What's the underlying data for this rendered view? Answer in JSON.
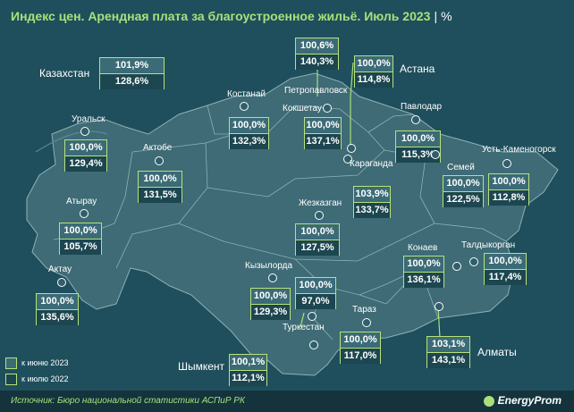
{
  "title": "Индекс цен. Арендная плата за благоустроенное жильё. Июль 2023",
  "unit": "%",
  "separator": "|",
  "national": {
    "name": "Казахстан",
    "vs_june": "101,9%",
    "vs_july": "128,6%"
  },
  "regions": [
    {
      "id": "petropavlovsk",
      "name": "Петропавловск",
      "vs_june": "100,6%",
      "vs_july": "140,3%"
    },
    {
      "id": "astana",
      "name": "Астана",
      "vs_june": "100,0%",
      "vs_july": "114,8%"
    },
    {
      "id": "kostanay",
      "name": "Костанай",
      "vs_june": "100,0%",
      "vs_july": "132,3%"
    },
    {
      "id": "kokshetau",
      "name": "Кокшетау",
      "vs_june": "100,0%",
      "vs_july": "137,1%"
    },
    {
      "id": "pavlodar",
      "name": "Павлодар",
      "vs_june": "100,0%",
      "vs_july": "115,3%"
    },
    {
      "id": "uralsk",
      "name": "Уральск",
      "vs_june": "100,0%",
      "vs_july": "129,4%"
    },
    {
      "id": "aktobe",
      "name": "Актобе",
      "vs_june": "100,0%",
      "vs_july": "131,5%"
    },
    {
      "id": "karaganda",
      "name": "Караганда",
      "vs_june": "103,9%",
      "vs_july": "133,7%"
    },
    {
      "id": "semey",
      "name": "Семей",
      "vs_june": "100,0%",
      "vs_july": "122,5%"
    },
    {
      "id": "ust_kamenogorsk",
      "name": "Усть-Каменогорск",
      "vs_june": "100,0%",
      "vs_july": "112,8%"
    },
    {
      "id": "atyrau",
      "name": "Атырау",
      "vs_june": "100,0%",
      "vs_july": "105,7%"
    },
    {
      "id": "zhezkazgan",
      "name": "Жезказган",
      "vs_june": "100,0%",
      "vs_july": "127,5%"
    },
    {
      "id": "aktau",
      "name": "Актау",
      "vs_june": "100,0%",
      "vs_july": "135,6%"
    },
    {
      "id": "konaev",
      "name": "Конаев",
      "vs_june": "100,0%",
      "vs_july": "136,1%"
    },
    {
      "id": "taldykorgan",
      "name": "Талдыкорган",
      "vs_june": "100,0%",
      "vs_july": "117,4%"
    },
    {
      "id": "kyzylorda",
      "name": "Кызылорда",
      "vs_june": "100,0%",
      "vs_july": "129,3%"
    },
    {
      "id": "turkestan",
      "name": "Туркестан",
      "vs_june": "100,0%",
      "vs_july": "97,0%"
    },
    {
      "id": "taraz",
      "name": "Тараз",
      "vs_june": "100,0%",
      "vs_july": "117,0%"
    },
    {
      "id": "shymkent",
      "name": "Шымкент",
      "vs_june": "100,1%",
      "vs_july": "112,1%"
    },
    {
      "id": "almaty",
      "name": "Алматы",
      "vs_june": "103,1%",
      "vs_july": "143,1%"
    }
  ],
  "legend": {
    "june": "к июню 2023",
    "july": "к июлю 2022"
  },
  "source": "Источник: Бюро национальной статистики АСПиР РК",
  "logo": {
    "brand": "EnergyProm",
    "icon": "energyprom-logo-icon"
  },
  "colors": {
    "background": "#1f4f5c",
    "land": "#3e6b75",
    "accent": "#a8e07a",
    "box_border": "#b8e27a"
  }
}
